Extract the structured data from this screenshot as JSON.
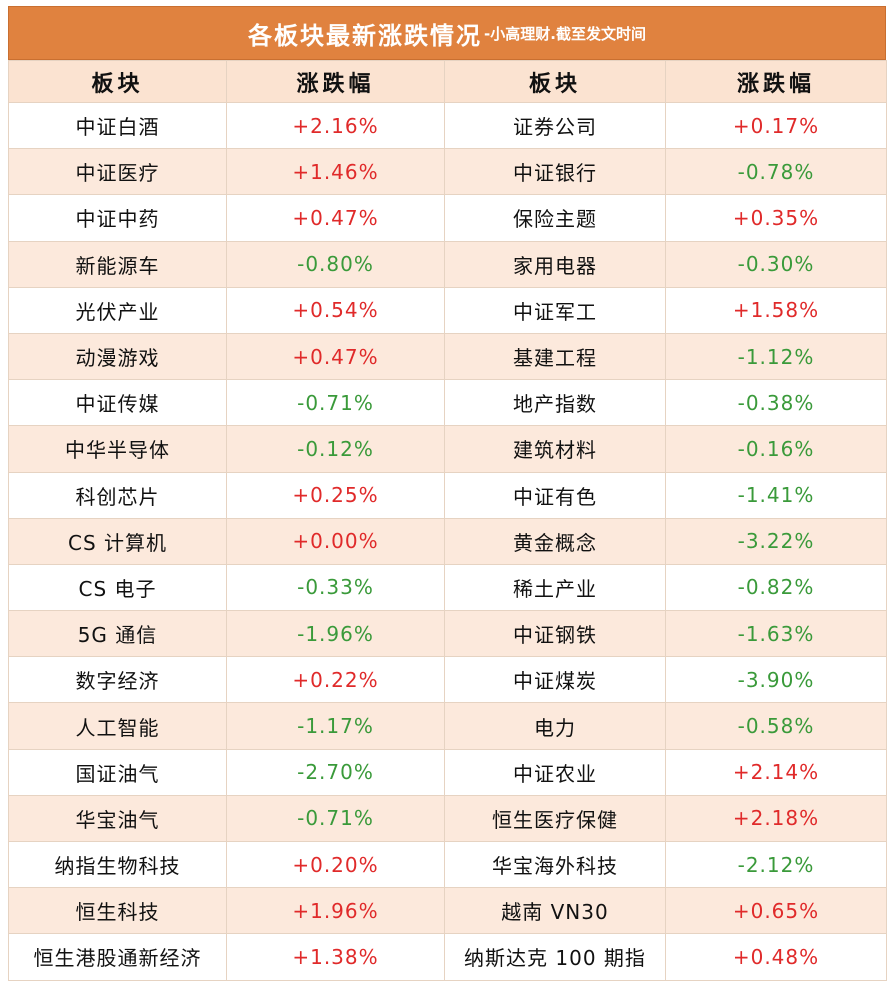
{
  "title": {
    "main": "各板块最新涨跌情况",
    "sub": "-小高理财.截至发文时间"
  },
  "headers": [
    "板块",
    "涨跌幅",
    "板块",
    "涨跌幅"
  ],
  "colors": {
    "up": "#e02a2a",
    "down": "#3a9a3a",
    "accent": "#e0823f"
  },
  "rows": [
    {
      "left_name": "中证白酒",
      "left_change": "+2.16%",
      "right_name": "证券公司",
      "right_change": "+0.17%"
    },
    {
      "left_name": "中证医疗",
      "left_change": "+1.46%",
      "right_name": "中证银行",
      "right_change": "-0.78%"
    },
    {
      "left_name": "中证中药",
      "left_change": "+0.47%",
      "right_name": "保险主题",
      "right_change": "+0.35%"
    },
    {
      "left_name": "新能源车",
      "left_change": "-0.80%",
      "right_name": "家用电器",
      "right_change": "-0.30%"
    },
    {
      "left_name": "光伏产业",
      "left_change": "+0.54%",
      "right_name": "中证军工",
      "right_change": "+1.58%"
    },
    {
      "left_name": "动漫游戏",
      "left_change": "+0.47%",
      "right_name": "基建工程",
      "right_change": "-1.12%"
    },
    {
      "left_name": "中证传媒",
      "left_change": "-0.71%",
      "right_name": "地产指数",
      "right_change": "-0.38%"
    },
    {
      "left_name": "中华半导体",
      "left_change": "-0.12%",
      "right_name": "建筑材料",
      "right_change": "-0.16%"
    },
    {
      "left_name": "科创芯片",
      "left_change": "+0.25%",
      "right_name": "中证有色",
      "right_change": "-1.41%"
    },
    {
      "left_name": "CS 计算机",
      "left_change": "+0.00%",
      "right_name": "黄金概念",
      "right_change": "-3.22%"
    },
    {
      "left_name": "CS 电子",
      "left_change": "-0.33%",
      "right_name": "稀土产业",
      "right_change": "-0.82%"
    },
    {
      "left_name": "5G 通信",
      "left_change": "-1.96%",
      "right_name": "中证钢铁",
      "right_change": "-1.63%"
    },
    {
      "left_name": "数字经济",
      "left_change": "+0.22%",
      "right_name": "中证煤炭",
      "right_change": "-3.90%"
    },
    {
      "left_name": "人工智能",
      "left_change": "-1.17%",
      "right_name": "电力",
      "right_change": "-0.58%"
    },
    {
      "left_name": "国证油气",
      "left_change": "-2.70%",
      "right_name": "中证农业",
      "right_change": "+2.14%"
    },
    {
      "left_name": "华宝油气",
      "left_change": "-0.71%",
      "right_name": "恒生医疗保健",
      "right_change": "+2.18%"
    },
    {
      "left_name": "纳指生物科技",
      "left_change": "+0.20%",
      "right_name": "华宝海外科技",
      "right_change": "-2.12%"
    },
    {
      "left_name": "恒生科技",
      "left_change": "+1.96%",
      "right_name": "越南 VN30",
      "right_change": "+0.65%"
    },
    {
      "left_name": "恒生港股通新经济",
      "left_change": "+1.38%",
      "right_name": "纳斯达克 100 期指",
      "right_change": "+0.48%"
    }
  ]
}
